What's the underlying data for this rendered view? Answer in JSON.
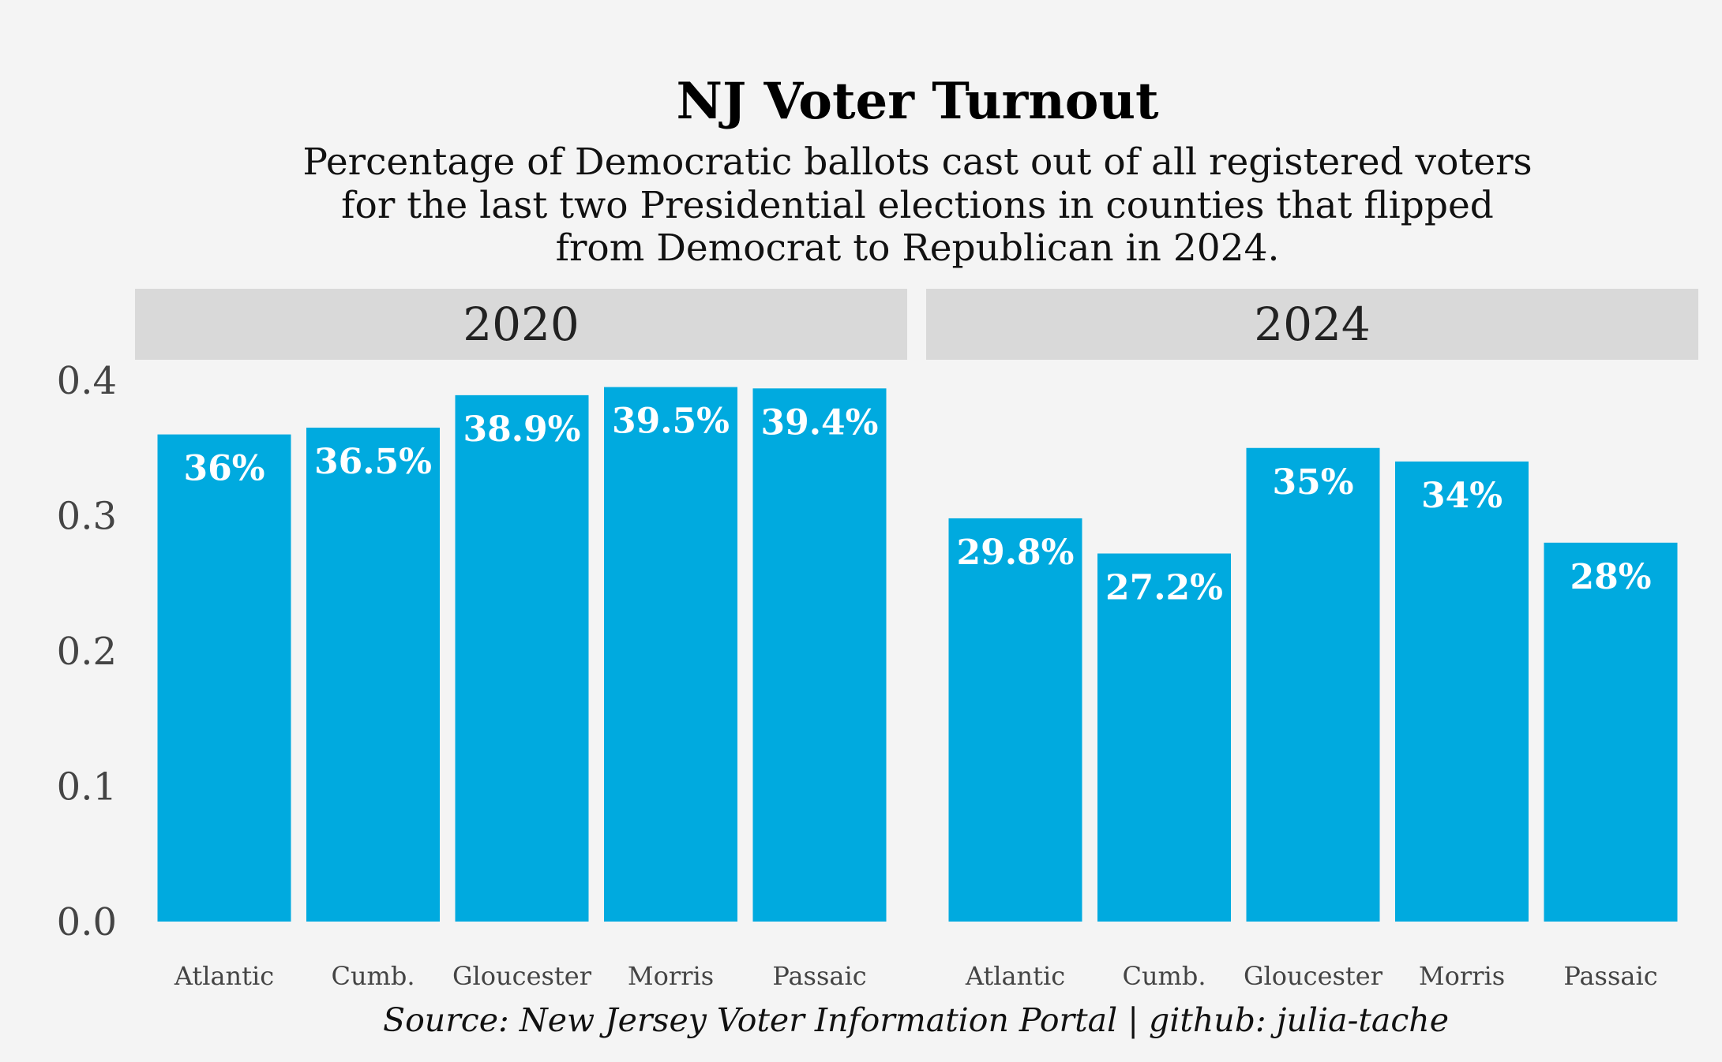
{
  "chart_data": {
    "type": "bar",
    "title": "NJ Voter Turnout",
    "subtitle": [
      "Percentage of Democratic ballots cast out of all registered voters",
      "for the last two Presidential elections in counties that flipped",
      "from Democrat to Republican in 2024."
    ],
    "caption": "Source: New Jersey Voter Information Portal | github: julia-tache",
    "xlabel": "",
    "ylabel": "",
    "ylim": [
      0,
      0.4
    ],
    "yticks": [
      "0.0",
      "0.1",
      "0.2",
      "0.3",
      "0.4"
    ],
    "colors": {
      "bar": "#00aadf",
      "background": "#f4f4f4",
      "strip": "#d9d9d9"
    },
    "panels": [
      {
        "facet": "2020",
        "categories": [
          "Atlantic",
          "Cumb.",
          "Gloucester",
          "Morris",
          "Passaic"
        ],
        "values": [
          0.36,
          0.365,
          0.389,
          0.395,
          0.394
        ],
        "labels": [
          "36%",
          "36.5%",
          "38.9%",
          "39.5%",
          "39.4%"
        ]
      },
      {
        "facet": "2024",
        "categories": [
          "Atlantic",
          "Cumb.",
          "Gloucester",
          "Morris",
          "Passaic"
        ],
        "values": [
          0.298,
          0.272,
          0.35,
          0.34,
          0.28
        ],
        "labels": [
          "29.8%",
          "27.2%",
          "35%",
          "34%",
          "28%"
        ]
      }
    ]
  }
}
